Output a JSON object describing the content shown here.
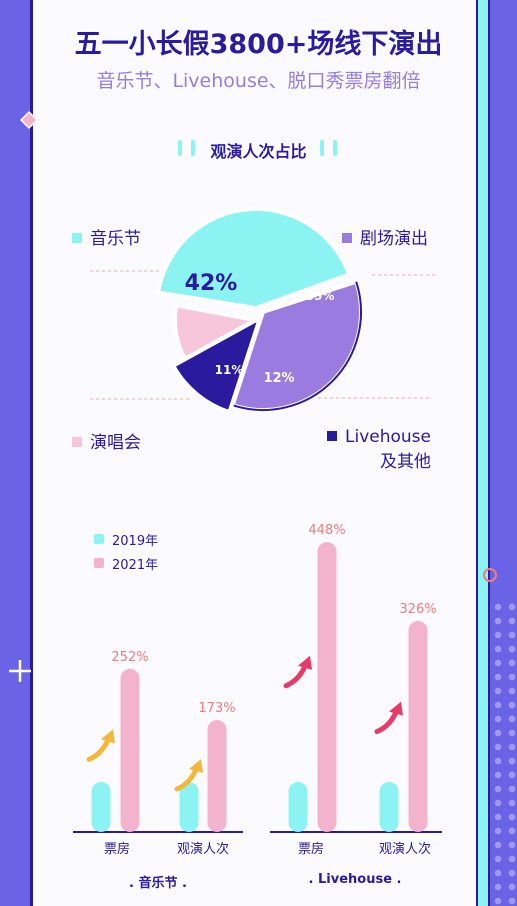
{
  "header": {
    "title": "五一小长假3800+场线下演出",
    "subtitle": "音乐节、Livehouse、脱口秀票房翻倍"
  },
  "pie_section": {
    "title": "观演人次占比"
  },
  "colors": {
    "cyan": "#8cf3f3",
    "purple": "#9a7be0",
    "dark": "#2a1a9e",
    "pink": "#f7c6d8",
    "bar2019": "#8cf3f3",
    "bar2021": "#f4b3cc",
    "pct": "#f07c7c"
  },
  "chart_data": [
    {
      "type": "pie",
      "title": "观演人次占比",
      "slices": [
        {
          "label": "音乐节",
          "value": 42,
          "value_label": "42%",
          "color": "#8cf3f3"
        },
        {
          "label": "剧场演出",
          "value": 35,
          "value_label": "35%",
          "color": "#9a7be0"
        },
        {
          "label": "Livehouse 及其他",
          "label_lines": [
            "Livehouse",
            "及其他"
          ],
          "value": 12,
          "value_label": "12%",
          "color": "#2a1a9e"
        },
        {
          "label": "演唱会",
          "value": 11,
          "value_label": "11%",
          "color": "#f7c6d8"
        }
      ]
    },
    {
      "type": "bar",
      "legend": [
        "2019年",
        "2021年"
      ],
      "groups": [
        {
          "name": ". 音乐节 .",
          "categories": [
            "票房",
            "观演人次"
          ],
          "series": [
            {
              "name": "2019年",
              "values": [
                100,
                100
              ]
            },
            {
              "name": "2021年",
              "values": [
                252,
                173
              ]
            }
          ],
          "labels": [
            "252%",
            "173%"
          ]
        },
        {
          "name": ". Livehouse .",
          "categories": [
            "票房",
            "观演人次"
          ],
          "series": [
            {
              "name": "2019年",
              "values": [
                100,
                100
              ]
            },
            {
              "name": "2021年",
              "values": [
                448,
                326
              ]
            }
          ],
          "labels": [
            "448%",
            "326%"
          ]
        }
      ]
    }
  ]
}
